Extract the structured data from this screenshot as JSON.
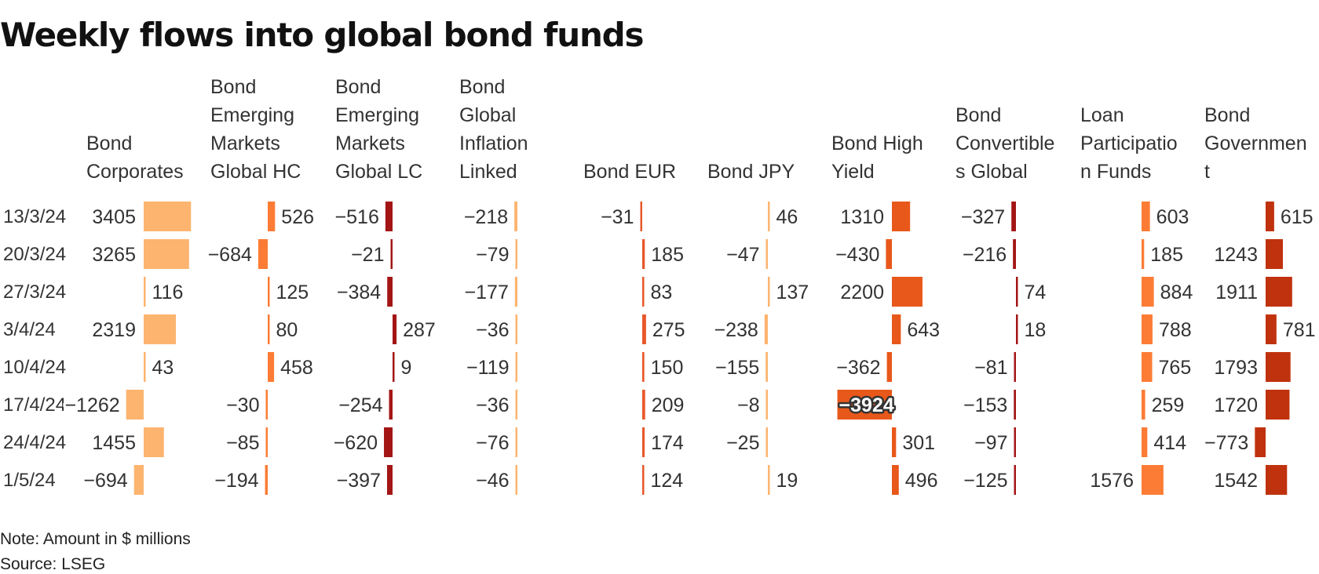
{
  "title": "Weekly flows into global bond funds",
  "note": "Note: Amount in $ millions",
  "source": "Source: LSEG",
  "chart_data": {
    "type": "bar",
    "orientation": "horizontal",
    "layout": "small-multiples",
    "title": "Weekly flows into global bond funds",
    "unit": "$ millions",
    "categories": [
      "13/3/24",
      "20/3/24",
      "27/3/24",
      "3/4/24",
      "10/4/24",
      "17/4/24",
      "24/4/24",
      "1/5/24"
    ],
    "series": [
      {
        "name": "Bond Corporates",
        "header_lines": [
          "Bond",
          "Corporates"
        ],
        "color": "#fdb46f",
        "values": [
          3405,
          3265,
          116,
          2319,
          43,
          -1262,
          1455,
          -694
        ]
      },
      {
        "name": "Bond Emerging Markets Global HC",
        "header_lines": [
          "Bond",
          "Emerging",
          "Markets",
          "Global HC"
        ],
        "color": "#fc7c35",
        "values": [
          526,
          -684,
          125,
          80,
          458,
          -30,
          -85,
          -194
        ]
      },
      {
        "name": "Bond Emerging Markets Global LC",
        "header_lines": [
          "Bond",
          "Emerging",
          "Markets",
          "Global LC"
        ],
        "color": "#a31515",
        "values": [
          -516,
          -21,
          -384,
          287,
          9,
          -254,
          -620,
          -397
        ]
      },
      {
        "name": "Bond Global Inflation Linked",
        "header_lines": [
          "Bond",
          "Global",
          "Inflation",
          "Linked"
        ],
        "color": "#fdb46f",
        "values": [
          -218,
          -79,
          -177,
          -36,
          -119,
          -36,
          -76,
          -46
        ]
      },
      {
        "name": "Bond EUR",
        "header_lines": [
          "Bond EUR"
        ],
        "color": "#e8582a",
        "values": [
          -31,
          185,
          83,
          275,
          150,
          209,
          174,
          124
        ]
      },
      {
        "name": "Bond JPY",
        "header_lines": [
          "Bond JPY"
        ],
        "color": "#fdb46f",
        "values": [
          46,
          -47,
          137,
          -238,
          -155,
          -8,
          -25,
          19
        ]
      },
      {
        "name": "Bond High Yield",
        "header_lines": [
          "Bond High",
          "Yield"
        ],
        "color": "#e8581a",
        "values": [
          1310,
          -430,
          2200,
          643,
          -362,
          -3924,
          301,
          496
        ]
      },
      {
        "name": "Bond Convertibles Global",
        "header_lines": [
          "Bond",
          "Convertible",
          "s Global"
        ],
        "color": "#a31515",
        "values": [
          -327,
          -216,
          74,
          18,
          -81,
          -153,
          -97,
          -125
        ]
      },
      {
        "name": "Loan Participation Funds",
        "header_lines": [
          "Loan",
          "Participatio",
          "n Funds"
        ],
        "color": "#fc7c35",
        "values": [
          603,
          185,
          884,
          788,
          765,
          259,
          414,
          1576
        ]
      },
      {
        "name": "Bond Government",
        "header_lines": [
          "Bond",
          "Governmen",
          "t"
        ],
        "color": "#c0320e",
        "values": [
          615,
          1243,
          1911,
          781,
          1793,
          1720,
          -773,
          1542
        ]
      }
    ],
    "xlabel": "",
    "ylabel": ""
  }
}
